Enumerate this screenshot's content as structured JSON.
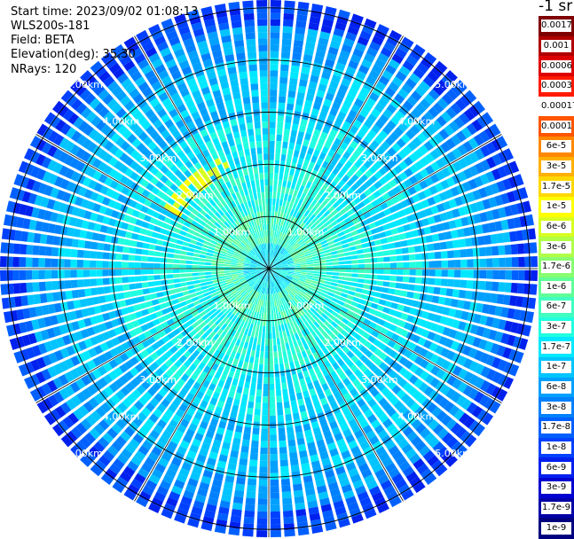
{
  "header": {
    "start_time": "Start time: 2023/09/02 01:08:13",
    "instrument": "WLS200s-181",
    "field": "Field: BETA",
    "elevation": "Elevation(deg): 35.30",
    "nrays": "NRays: 120"
  },
  "colorbar": {
    "unit": "-1 sr",
    "levels": [
      "0.0017",
      "0.001",
      "0.0006",
      "0.0003",
      "0.00017",
      "0.0001",
      "6e-5",
      "3e-5",
      "1.7e-5",
      "1e-5",
      "6e-6",
      "3e-6",
      "1.7e-6",
      "1e-6",
      "6e-7",
      "3e-7",
      "1.7e-7",
      "1e-7",
      "6e-8",
      "3e-8",
      "1.7e-8",
      "1e-8",
      "6e-9",
      "3e-9",
      "1.7e-9",
      "1e-9"
    ],
    "colors": [
      "#7f0000",
      "#b00000",
      "#dd0000",
      "#ff1a00",
      "#ffffff",
      "#ff5500",
      "#ff8800",
      "#ffb000",
      "#ffd800",
      "#ffff00",
      "#d8ff20",
      "#b0ff48",
      "#88ff70",
      "#60ff98",
      "#40ffc0",
      "#20ffe0",
      "#00e8ff",
      "#00c4ff",
      "#00a0ff",
      "#0080ff",
      "#0060ff",
      "#0040ff",
      "#0020ee",
      "#0000d0",
      "#0000a8",
      "#000080"
    ]
  },
  "chart_data": {
    "type": "heatmap",
    "projection": "polar PPI (plan position indicator)",
    "field": "BETA",
    "n_rays": 120,
    "range_rings_km": [
      1,
      2,
      3,
      4,
      5
    ],
    "range_labels": [
      "1.00km",
      "2.00km",
      "3.00km",
      "4.00km",
      "5.00km"
    ],
    "range_label_azimuths_deg": [
      45,
      135,
      225,
      315
    ],
    "spoke_interval_deg": 30,
    "scale": "logarithmic",
    "value_range": [
      1e-09,
      0.0017
    ],
    "typical_background_level": "1.7e-7",
    "inner_annulus_level": "6e-7",
    "outer_ring_level": "1e-8",
    "feature": {
      "level": "1e-5",
      "range_km": [
        2.0,
        2.3
      ],
      "azimuth_deg": [
        300,
        340
      ]
    }
  }
}
